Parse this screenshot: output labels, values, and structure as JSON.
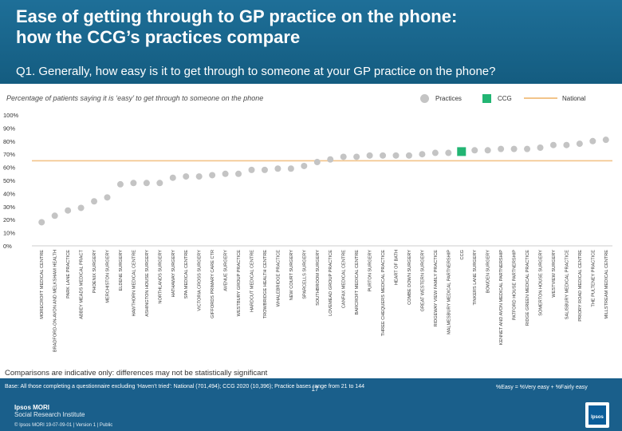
{
  "header": {
    "title_line1": "Ease of getting through to GP practice on the phone:",
    "title_line2": "how the CCG’s practices compare",
    "question": "Q1. Generally, how easy is it to get through to someone at your GP practice on the phone?"
  },
  "subtitle": "Percentage of patients saying it is ‘easy’ to get through to someone on the phone",
  "legend": {
    "practices": "Practices",
    "ccg": "CCG",
    "national": "National"
  },
  "colors": {
    "practice": "#c4c4c4",
    "ccg": "#22b573",
    "national": "#f2c48a",
    "header_bg": "#1a5f8b"
  },
  "chart_data": {
    "type": "scatter",
    "ylim": [
      0,
      100
    ],
    "yticks": [
      "0%",
      "10%",
      "20%",
      "30%",
      "40%",
      "50%",
      "60%",
      "70%",
      "80%",
      "90%",
      "100%"
    ],
    "national": 65,
    "grid": false,
    "categories": [
      "MORECROFT MEDICAL CENTRE",
      "BRADFORD-ON-AVON AND MELKSHAM HEALTH",
      "PARK LANE PRACTICE",
      "ABBEY MEADS MEDICAL PRACT",
      "PHOENIX SURGERY",
      "MERCHISTON SURGERY",
      "ELDENE SURGERY",
      "HAWTHORN MEDICAL CENTRE",
      "ASHINGTON HOUSE SURGERY",
      "NORTHLANDS SURGERY",
      "HATHAWAY SURGERY",
      "SPA MEDICAL CENTRE",
      "VICTORIA CROSS SURGERY",
      "GIFFORDS PRIMARY CARE CTR",
      "AVENUE SURGERY",
      "WESTBURY GROUP PRACTICE",
      "HARDCUT MEDICAL CENTRE",
      "TROWBRIDGE HEALTH CENTRE",
      "WHALEBRIDGE PRACTICE",
      "NEW COURT SURGERY",
      "SPARCELLS SURGERY",
      "SOUTHBROOM SURGERY",
      "LOVEMEAD GROUP PRACTICE",
      "CANFAX MEDICAL CENTRE",
      "BARCROFT MEDICAL CENTRE",
      "PURTON SURGERY",
      "THREE CHEQUERS MEDICAL PRACTICE",
      "HEART OF BATH",
      "COMBE DOWN SURGERY",
      "GREAT WESTERN SURGERY",
      "RIDGEWAY VIEW FAMILY PRACTICE",
      "MALMESBURY MEDICAL PARTNERSHIP",
      "CCG",
      "TINKERS LANE SURGERY",
      "BOWDEN SURGERY",
      "KENNET AND AVON MEDICAL PARTNERSHIP",
      "PATFORD HOUSE PARTNERSHIP",
      "RIDGE GREEN MEDICAL PRACTICE",
      "SOMERTON HOUSE SURGERY",
      "WESTVIEW SURGERY",
      "SALISBURY MEDICAL PRACTICE",
      "PRIORY ROAD MEDICAL CENTRE",
      "THE PULTENEY PRACTICE",
      "MILLSTREAM MEDICAL CENTRE"
    ],
    "values": [
      18,
      23,
      27,
      29,
      34,
      37,
      47,
      48,
      48,
      48,
      52,
      53,
      53,
      54,
      55,
      55,
      58,
      58,
      59,
      59,
      61,
      64,
      66,
      68,
      68,
      69,
      69,
      69,
      69,
      70,
      71,
      71,
      72,
      73,
      73,
      74,
      74,
      74,
      75,
      77,
      77,
      78,
      80,
      81
    ],
    "ccg_index": 32
  },
  "note": "Comparisons are indicative only: differences may not be statistically significant",
  "footer": {
    "base": "Base: All those completing a questionnaire excluding ‘Haven’t tried’: National (701,494); CCG 2020 (10,396); Practice bases range from 21 to 144",
    "formula": "%Easy = %Very easy + %Fairly easy",
    "page_number": "17",
    "brand": "Ipsos MORI",
    "brand_sub": "Social Research Institute",
    "copyright": "© Ipsos MORI    19-07-09-01 | Version 1 | Public",
    "logo_text": "Ipsos"
  }
}
